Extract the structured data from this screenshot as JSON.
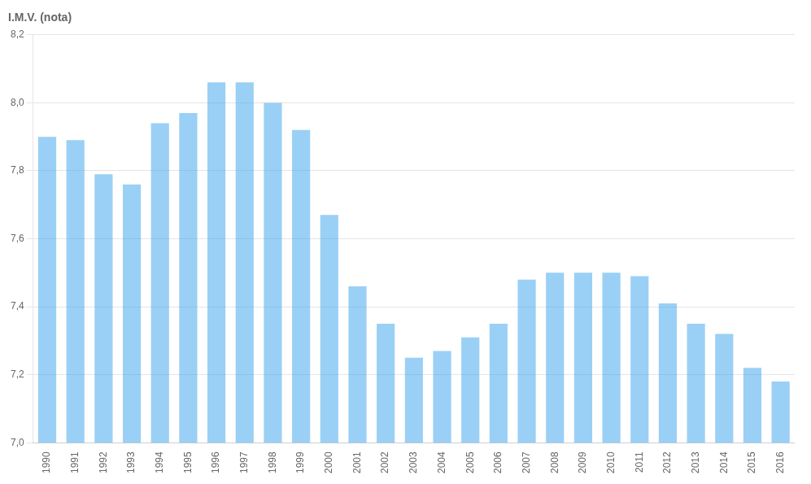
{
  "chart_data": {
    "type": "bar",
    "ylabel": "I.M.V. (nota)",
    "categories": [
      "1990",
      "1991",
      "1992",
      "1993",
      "1994",
      "1995",
      "1996",
      "1997",
      "1998",
      "1999",
      "2000",
      "2001",
      "2002",
      "2003",
      "2004",
      "2005",
      "2006",
      "2007",
      "2008",
      "2009",
      "2010",
      "2011",
      "2012",
      "2013",
      "2014",
      "2015",
      "2016"
    ],
    "values": [
      7.9,
      7.89,
      7.79,
      7.76,
      7.94,
      7.97,
      8.06,
      8.06,
      8.0,
      7.92,
      7.67,
      7.46,
      7.35,
      7.25,
      7.27,
      7.31,
      7.35,
      7.48,
      7.5,
      7.5,
      7.5,
      7.49,
      7.41,
      7.35,
      7.32,
      7.22,
      7.18
    ],
    "ylim": [
      7.0,
      8.2
    ],
    "yticks": [
      {
        "value": 7.0,
        "label": "7,0"
      },
      {
        "value": 7.2,
        "label": "7,2"
      },
      {
        "value": 7.4,
        "label": "7,4"
      },
      {
        "value": 7.6,
        "label": "7,6"
      },
      {
        "value": 7.8,
        "label": "7,8"
      },
      {
        "value": 8.0,
        "label": "8,0"
      },
      {
        "value": 8.2,
        "label": "8,2"
      }
    ],
    "grid": true
  }
}
